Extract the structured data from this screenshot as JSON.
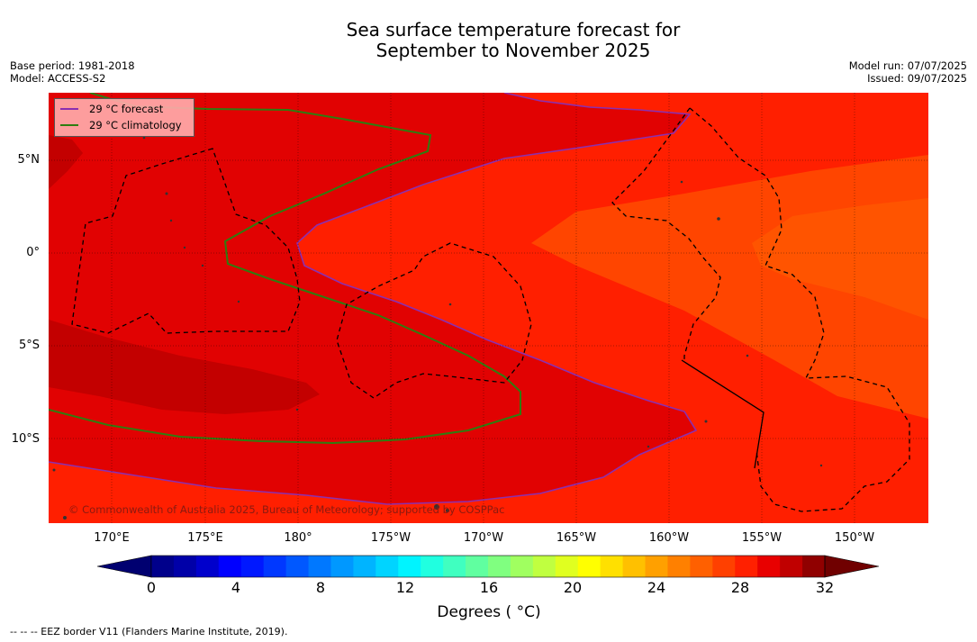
{
  "title_line1": "Sea surface temperature forecast for",
  "title_line2": "September to November 2025",
  "base_period": "Base period: 1981-2018",
  "model": "Model: ACCESS-S2",
  "model_run": "Model run: 07/07/2025",
  "issued": "Issued: 09/07/2025",
  "legend": {
    "forecast_label": "29 °C  forecast",
    "forecast_color": "#8b2fb0",
    "climatology_label": "29 °C  climatology",
    "climatology_color": "#2e7d10"
  },
  "copyright": "© Commonwealth of Australia 2025, Bureau of Meteorology; supported by COSPPac",
  "lat_labels": [
    "5°N",
    "0°",
    "5°S",
    "10°S"
  ],
  "lon_labels": [
    "170°E",
    "175°E",
    "180°",
    "175°W",
    "170°W",
    "165°W",
    "160°W",
    "155°W",
    "150°W"
  ],
  "colorbar": {
    "ticks": [
      "0",
      "4",
      "8",
      "12",
      "16",
      "20",
      "24",
      "28",
      "32"
    ],
    "label": "Degrees ( °C)",
    "colors": [
      "#00008b",
      "#0000a8",
      "#0000cc",
      "#0000ff",
      "#0018ff",
      "#0038ff",
      "#0058ff",
      "#0078ff",
      "#0098ff",
      "#00b4ff",
      "#00d4ff",
      "#00f4ff",
      "#20ffe0",
      "#40ffc0",
      "#60ffa0",
      "#80ff80",
      "#a0ff60",
      "#c0ff40",
      "#e0ff20",
      "#ffff00",
      "#ffe000",
      "#ffc000",
      "#ffa000",
      "#ff8000",
      "#ff6000",
      "#ff4000",
      "#ff2000",
      "#e80000",
      "#c00000",
      "#900000"
    ],
    "below_color": "#000070",
    "above_color": "#700000"
  },
  "field_colors": {
    "c28": "#ff1f00",
    "c29": "#e10202",
    "c30": "#c30000",
    "c27": "#ff4500",
    "c28b": "#ff5400"
  },
  "footer": "--  --  -- EEZ border V11 (Flanders Marine Institute, 2019)."
}
